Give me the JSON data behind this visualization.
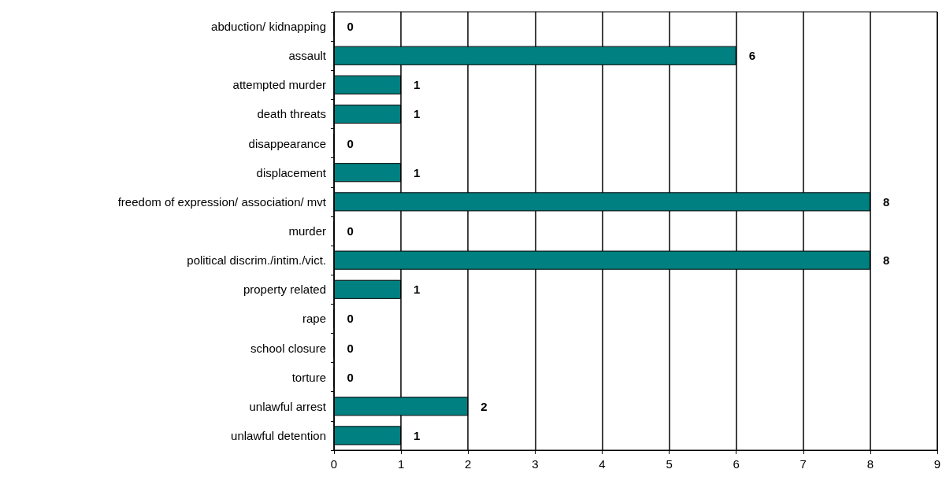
{
  "chart_data": {
    "type": "bar",
    "orientation": "horizontal",
    "categories": [
      "abduction/ kidnapping",
      "assault",
      "attempted murder",
      "death threats",
      "disappearance",
      "displacement",
      "freedom of expression/ association/ mvt",
      "murder",
      "political discrim./intim./vict.",
      "property related",
      "rape",
      "school closure",
      "torture",
      "unlawful arrest",
      "unlawful detention"
    ],
    "values": [
      0,
      6,
      1,
      1,
      0,
      1,
      8,
      0,
      8,
      1,
      0,
      0,
      0,
      2,
      1
    ],
    "color": "#008080",
    "xlim": [
      0,
      9
    ],
    "xticks": [
      0,
      1,
      2,
      3,
      4,
      5,
      6,
      7,
      8,
      9
    ],
    "grid": "x",
    "data_labels": true
  }
}
